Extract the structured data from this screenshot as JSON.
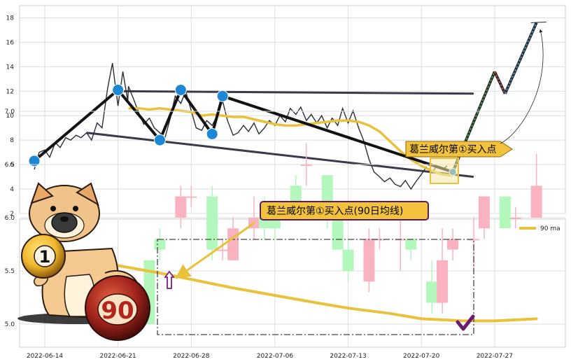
{
  "chart_data": [
    {
      "type": "line",
      "ylim": [
        2,
        19
      ],
      "y_ticks": [
        "2",
        "4",
        "6",
        "8",
        "10",
        "12",
        "14",
        "16",
        "18"
      ],
      "grid": true,
      "price_series": [
        [
          "2022-06-13",
          5.6
        ],
        [
          "2022-06-13",
          7.0
        ],
        [
          "2022-06-14",
          7.2
        ],
        [
          "2022-06-14",
          6.6
        ],
        [
          "2022-06-15",
          7.8
        ],
        [
          "2022-06-15",
          7.4
        ],
        [
          "2022-06-16",
          8.2
        ],
        [
          "2022-06-16",
          8.0
        ],
        [
          "2022-06-17",
          8.4
        ],
        [
          "2022-06-17",
          8.2
        ],
        [
          "2022-06-18",
          8.6
        ],
        [
          "2022-06-18",
          8.0
        ],
        [
          "2022-06-19",
          9.4
        ],
        [
          "2022-06-19",
          9.0
        ],
        [
          "2022-06-20",
          12.2
        ],
        [
          "2022-06-20",
          14.3
        ],
        [
          "2022-06-21",
          10.8
        ],
        [
          "2022-06-21",
          13.6
        ],
        [
          "2022-06-21",
          11.2
        ],
        [
          "2022-06-22",
          12.4
        ],
        [
          "2022-06-22",
          11.4
        ],
        [
          "2022-06-23",
          10.2
        ],
        [
          "2022-06-23",
          9.3
        ],
        [
          "2022-06-24",
          9.8
        ],
        [
          "2022-06-24",
          9.0
        ],
        [
          "2022-06-25",
          8.6
        ],
        [
          "2022-06-25",
          8.1
        ],
        [
          "2022-06-26",
          9.8
        ],
        [
          "2022-06-26",
          11.6
        ],
        [
          "2022-06-27",
          11.0
        ],
        [
          "2022-06-27",
          12.0
        ],
        [
          "2022-06-28",
          10.4
        ],
        [
          "2022-06-28",
          9.0
        ],
        [
          "2022-06-29",
          8.8
        ],
        [
          "2022-06-29",
          9.6
        ],
        [
          "2022-06-30",
          9.2
        ],
        [
          "2022-06-30",
          10.0
        ],
        [
          "2022-07-01",
          11.2
        ],
        [
          "2022-07-01",
          9.6
        ],
        [
          "2022-07-02",
          8.4
        ],
        [
          "2022-07-02",
          8.6
        ],
        [
          "2022-07-03",
          9.2
        ],
        [
          "2022-07-03",
          8.7
        ],
        [
          "2022-07-04",
          9.4
        ],
        [
          "2022-07-04",
          8.5
        ],
        [
          "2022-07-05",
          9.0
        ],
        [
          "2022-07-05",
          9.6
        ],
        [
          "2022-07-06",
          9.2
        ],
        [
          "2022-07-06",
          10.0
        ],
        [
          "2022-07-07",
          9.5
        ],
        [
          "2022-07-07",
          10.6
        ],
        [
          "2022-07-08",
          10.1
        ],
        [
          "2022-07-08",
          10.7
        ],
        [
          "2022-07-09",
          9.6
        ],
        [
          "2022-07-09",
          10.1
        ],
        [
          "2022-07-10",
          9.4
        ],
        [
          "2022-07-10",
          10.0
        ],
        [
          "2022-07-11",
          9.0
        ],
        [
          "2022-07-11",
          9.8
        ],
        [
          "2022-07-12",
          9.2
        ],
        [
          "2022-07-12",
          10.6
        ],
        [
          "2022-07-13",
          9.4
        ],
        [
          "2022-07-13",
          10.4
        ],
        [
          "2022-07-14",
          9.0
        ],
        [
          "2022-07-14",
          8.0
        ],
        [
          "2022-07-15",
          6.4
        ],
        [
          "2022-07-15",
          5.4
        ],
        [
          "2022-07-16",
          5.0
        ],
        [
          "2022-07-16",
          4.6
        ],
        [
          "2022-07-17",
          4.9
        ],
        [
          "2022-07-17",
          4.4
        ],
        [
          "2022-07-18",
          4.2
        ],
        [
          "2022-07-18",
          4.7
        ],
        [
          "2022-07-19",
          4.0
        ],
        [
          "2022-07-19",
          4.6
        ],
        [
          "2022-07-20",
          5.2
        ],
        [
          "2022-07-20",
          5.8
        ],
        [
          "2022-07-21",
          5.3
        ],
        [
          "2022-07-21",
          5.9
        ],
        [
          "2022-07-22",
          5.6
        ],
        [
          "2022-07-22",
          5.9
        ]
      ],
      "ma_line": [
        [
          "2022-06-22",
          10.6
        ],
        [
          "2022-06-23",
          10.6
        ],
        [
          "2022-06-24",
          10.5
        ],
        [
          "2022-06-25",
          10.6
        ],
        [
          "2022-06-26",
          10.5
        ],
        [
          "2022-06-27",
          10.4
        ],
        [
          "2022-06-28",
          10.3
        ],
        [
          "2022-06-29",
          10.0
        ],
        [
          "2022-06-30",
          10.1
        ],
        [
          "2022-07-01",
          10.0
        ],
        [
          "2022-07-02",
          9.9
        ],
        [
          "2022-07-03",
          9.9
        ],
        [
          "2022-07-04",
          9.7
        ],
        [
          "2022-07-05",
          9.5
        ],
        [
          "2022-07-06",
          9.3
        ],
        [
          "2022-07-07",
          9.2
        ],
        [
          "2022-07-08",
          9.2
        ],
        [
          "2022-07-09",
          9.3
        ],
        [
          "2022-07-10",
          9.4
        ],
        [
          "2022-07-11",
          9.5
        ],
        [
          "2022-07-12",
          9.6
        ],
        [
          "2022-07-13",
          9.6
        ],
        [
          "2022-07-14",
          9.5
        ],
        [
          "2022-07-15",
          9.2
        ],
        [
          "2022-07-16",
          8.7
        ],
        [
          "2022-07-17",
          7.9
        ],
        [
          "2022-07-18",
          7.1
        ],
        [
          "2022-07-19",
          6.4
        ],
        [
          "2022-07-20",
          5.9
        ],
        [
          "2022-07-21",
          5.5
        ],
        [
          "2022-07-22",
          5.2
        ],
        [
          "2022-07-23",
          5.1
        ]
      ],
      "pivots": [
        [
          "2022-06-13",
          6.3
        ],
        [
          "2022-06-21",
          12.1
        ],
        [
          "2022-06-25",
          8.0
        ],
        [
          "2022-06-27",
          12.1
        ],
        [
          "2022-06-30",
          8.5
        ],
        [
          "2022-07-01",
          11.6
        ],
        [
          "2022-07-23",
          5.4
        ]
      ],
      "resistance_line": [
        [
          "2022-06-21",
          12.0
        ],
        [
          "2022-07-25",
          11.8
        ]
      ],
      "support_line": [
        [
          "2022-06-18",
          8.6
        ],
        [
          "2022-07-25",
          5.0
        ]
      ],
      "forecast_path": [
        [
          "2022-07-23",
          5.4
        ],
        [
          "2022-07-27",
          13.6
        ],
        [
          "2022-07-28",
          11.8
        ],
        [
          "2022-07-31",
          17.6
        ]
      ],
      "annotations": [
        {
          "text": "葛兰威尔第①买入点",
          "x": "2022-07-23",
          "y": 5.4
        }
      ]
    },
    {
      "type": "candlestick",
      "ylim": [
        4.5,
        7.0
      ],
      "y_ticks": [
        "5.0",
        "5.5",
        "6.0",
        "6.5",
        "7.0"
      ],
      "x_ticks": [
        "2022-06-14",
        "2022-06-21",
        "2022-06-28",
        "2022-07-06",
        "2022-07-13",
        "2022-07-20",
        "2022-07-27"
      ],
      "grid": true,
      "legend": {
        "position": "top-right",
        "entries": [
          "90 ma"
        ]
      },
      "candles": [
        {
          "date": "2022-06-23",
          "open": 5.0,
          "close": 5.1,
          "high": 5.1,
          "low": 5.0
        },
        {
          "date": "2022-06-24",
          "open": 5.6,
          "close": 5.0,
          "high": 5.6,
          "low": 5.0
        },
        {
          "date": "2022-06-25",
          "open": 5.8,
          "close": 5.7,
          "high": 5.9,
          "low": 5.6
        },
        {
          "date": "2022-06-27",
          "open": 6.0,
          "close": 6.2,
          "high": 6.3,
          "low": 5.9
        },
        {
          "date": "2022-06-28",
          "open": 6.2,
          "close": 6.2,
          "high": 6.3,
          "low": 6.1
        },
        {
          "date": "2022-06-30",
          "open": 6.2,
          "close": 5.7,
          "high": 6.3,
          "low": 5.6
        },
        {
          "date": "2022-07-01",
          "open": 5.7,
          "close": 5.7,
          "high": 5.8,
          "low": 5.6
        },
        {
          "date": "2022-07-02",
          "open": 5.6,
          "close": 5.9,
          "high": 6.0,
          "low": 5.6
        },
        {
          "date": "2022-07-04",
          "open": 5.9,
          "close": 6.0,
          "high": 6.2,
          "low": 5.8
        },
        {
          "date": "2022-07-05",
          "open": 6.0,
          "close": 5.9,
          "high": 6.2,
          "low": 5.8
        },
        {
          "date": "2022-07-06",
          "open": 6.1,
          "close": 5.9,
          "high": 6.1,
          "low": 5.8
        },
        {
          "date": "2022-07-08",
          "open": 6.3,
          "close": 6.0,
          "high": 6.4,
          "low": 6.0
        },
        {
          "date": "2022-07-09",
          "open": 6.5,
          "close": 6.5,
          "high": 6.7,
          "low": 6.3
        },
        {
          "date": "2022-07-11",
          "open": 6.4,
          "close": 6.0,
          "high": 6.4,
          "low": 5.9
        },
        {
          "date": "2022-07-12",
          "open": 6.0,
          "close": 5.7,
          "high": 6.0,
          "low": 5.7
        },
        {
          "date": "2022-07-13",
          "open": 5.7,
          "close": 5.5,
          "high": 5.8,
          "low": 5.4
        },
        {
          "date": "2022-07-15",
          "open": 5.4,
          "close": 5.8,
          "high": 5.9,
          "low": 5.3
        },
        {
          "date": "2022-07-16",
          "open": 5.8,
          "close": 5.8,
          "high": 5.9,
          "low": 5.7
        },
        {
          "date": "2022-07-18",
          "open": 5.8,
          "close": 5.8,
          "high": 6.0,
          "low": 5.5
        },
        {
          "date": "2022-07-19",
          "open": 5.8,
          "close": 5.7,
          "high": 5.8,
          "low": 5.6
        },
        {
          "date": "2022-07-21",
          "open": 5.4,
          "close": 5.2,
          "high": 5.6,
          "low": 5.1
        },
        {
          "date": "2022-07-22",
          "open": 5.2,
          "close": 5.6,
          "high": 5.9,
          "low": 5.1
        },
        {
          "date": "2022-07-23",
          "open": 5.7,
          "close": 5.8,
          "high": 5.9,
          "low": 5.6
        },
        {
          "date": "2022-07-25",
          "open": 5.8,
          "close": 5.8,
          "high": 6.0,
          "low": 5.5
        },
        {
          "date": "2022-07-26",
          "open": 5.9,
          "close": 6.2,
          "high": 6.2,
          "low": 5.8
        },
        {
          "date": "2022-07-28",
          "open": 6.2,
          "close": 5.9,
          "high": 6.2,
          "low": 5.9
        },
        {
          "date": "2022-07-29",
          "open": 6.0,
          "close": 6.0,
          "high": 6.1,
          "low": 5.9
        },
        {
          "date": "2022-07-31",
          "open": 6.0,
          "close": 6.3,
          "high": 6.6,
          "low": 6.0
        }
      ],
      "ma90": [
        [
          "2022-06-14",
          5.62
        ],
        [
          "2022-06-18",
          5.58
        ],
        [
          "2022-06-21",
          5.55
        ],
        [
          "2022-06-25",
          5.48
        ],
        [
          "2022-06-28",
          5.42
        ],
        [
          "2022-07-02",
          5.34
        ],
        [
          "2022-07-06",
          5.27
        ],
        [
          "2022-07-10",
          5.2
        ],
        [
          "2022-07-13",
          5.15
        ],
        [
          "2022-07-17",
          5.1
        ],
        [
          "2022-07-20",
          5.05
        ],
        [
          "2022-07-24",
          5.03
        ],
        [
          "2022-07-27",
          5.03
        ],
        [
          "2022-07-31",
          5.05
        ]
      ],
      "annotations": [
        {
          "text": "葛兰威尔第①买入点(90日均线)",
          "x": "2022-06-24",
          "y": 5.9
        }
      ]
    }
  ],
  "colors": {
    "price": "#2c2c38",
    "ma": "#e8c23a",
    "trend": "#121212",
    "trendline": "#3a3a48",
    "pivot": "#1e88d4",
    "up": "#f9b2bf",
    "down": "#b4f7bc",
    "callout_bg": "#f2c23c",
    "callout_border": "#5b1a60",
    "arrow_purple": "#7b1f7f",
    "check": "#6b1a70"
  },
  "mascot": {
    "icon": "shiba-dog",
    "ball_1": "1",
    "ball_90": "90"
  }
}
